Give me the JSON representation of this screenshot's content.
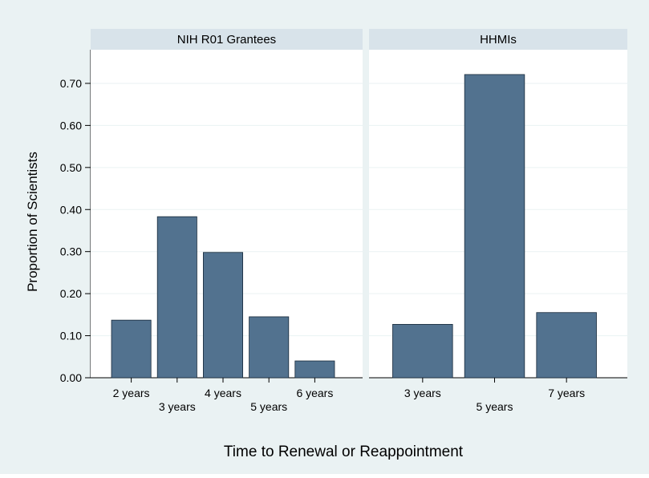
{
  "chart_data": {
    "type": "bar",
    "ylabel": "Proportion of Scientists",
    "xlabel": "Time to Renewal or Reappointment",
    "ylim": [
      0,
      0.78
    ],
    "yticks": [
      "0.00",
      "0.10",
      "0.20",
      "0.30",
      "0.40",
      "0.50",
      "0.60",
      "0.70"
    ],
    "grid": true,
    "colors": {
      "background": "#eaf2f3",
      "plot": "#ffffff",
      "header": "#d8e3ea",
      "bar": "#52728f",
      "bar_edge": "#17293a",
      "grid": "#eaf2f3",
      "axis": "#000000"
    },
    "panels": [
      {
        "title": "NIH R01 Grantees",
        "categories": [
          "2 years",
          "3 years",
          "4 years",
          "5 years",
          "6 years"
        ],
        "values": [
          0.137,
          0.383,
          0.298,
          0.145,
          0.04
        ]
      },
      {
        "title": "HHMIs",
        "categories": [
          "3 years",
          "5 years",
          "7 years"
        ],
        "values": [
          0.127,
          0.721,
          0.155
        ]
      }
    ]
  }
}
